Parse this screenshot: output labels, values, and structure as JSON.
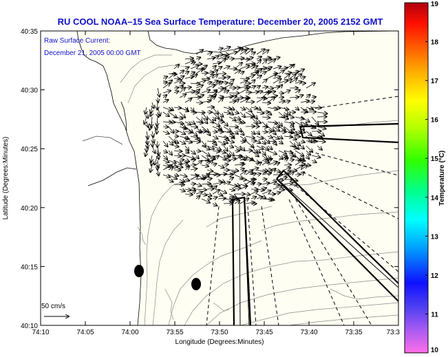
{
  "title": "RU COOL   NOAA–15  Sea Surface Temperature:  December 20, 2005 2152 GMT",
  "caption": {
    "line1": "Raw Surface Current:",
    "line2": "December 21, 2005 00:00 GMT"
  },
  "axes": {
    "xlabel": "Longitude (Degrees:Minutes)",
    "ylabel": "Latitude (Degrees:Minutes)",
    "x_ticks": [
      "74:10",
      "74:05",
      "74:00",
      "73:55",
      "73:50",
      "73:45",
      "73:40",
      "73:35",
      "73:3"
    ],
    "y_ticks": [
      "40:35",
      "40:30",
      "40:25",
      "40:20",
      "40:15",
      "40:10"
    ]
  },
  "scale_arrow": {
    "label": "50 cm/s",
    "speed_cm_s": 50
  },
  "colorbar": {
    "label": "Temperature (°C)",
    "min": 10,
    "max": 19,
    "ticks": [
      "19",
      "18",
      "17",
      "16",
      "15",
      "14",
      "13",
      "12",
      "11",
      "10"
    ]
  },
  "colors": {
    "title": "#1010c8",
    "land": "#ffffff",
    "sea": "#fffef2"
  }
}
